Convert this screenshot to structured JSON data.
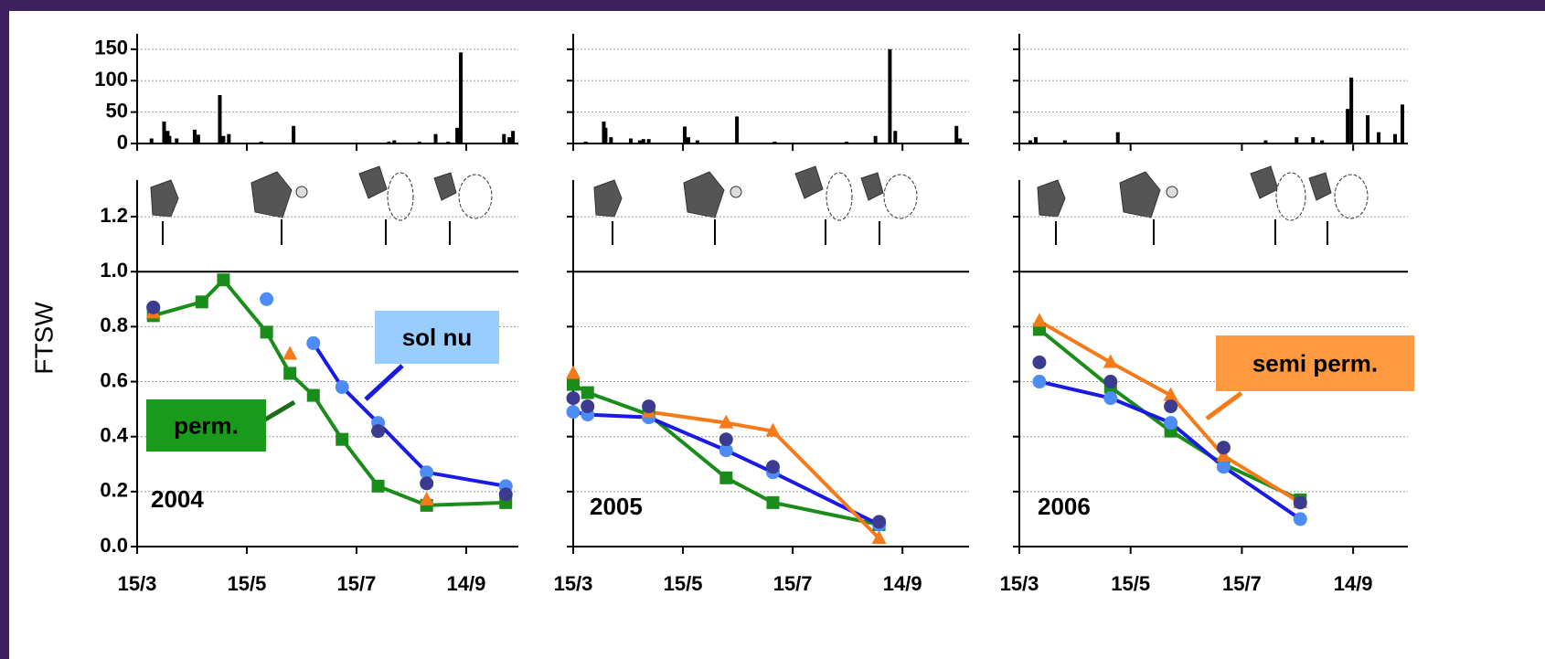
{
  "chart_data": [
    {
      "type": "bar",
      "color": "#000000",
      "grid": true,
      "xlim": [
        74,
        286
      ],
      "ylim": [
        0,
        160
      ],
      "yticks": [
        0,
        50,
        100,
        150
      ],
      "x": [
        82,
        89,
        91,
        92,
        96,
        106,
        108,
        120,
        122,
        125,
        143,
        161,
        214,
        217,
        231,
        240,
        247,
        252,
        254,
        278,
        281,
        283
      ],
      "values": [
        8,
        35,
        20,
        12,
        8,
        22,
        14,
        77,
        12,
        15,
        3,
        28,
        3,
        5,
        3,
        15,
        3,
        25,
        145,
        15,
        10,
        20
      ]
    },
    {
      "type": "line",
      "grid": true,
      "xlim": [
        74,
        286
      ],
      "ylim": [
        0,
        1.3
      ],
      "yticks": [
        {
          "value": 0,
          "label": "0.0"
        },
        0.2,
        0.4,
        0.6,
        0.8,
        {
          "value": 1,
          "label": "1.0"
        },
        1.2
      ],
      "xticks": [
        {
          "value": 74,
          "label": "15/3"
        },
        {
          "value": 135,
          "label": "15/5"
        },
        {
          "value": 196,
          "label": "15/7"
        },
        {
          "value": 257,
          "label": "14/9"
        }
      ],
      "y_label": "FTSW",
      "year": "2004",
      "x": [
        83,
        110,
        122,
        146,
        159,
        172,
        188,
        208,
        235,
        279
      ],
      "series": [
        {
          "name": "perm.",
          "color": "#1a8c1a",
          "marker": "square",
          "marker_color": "#1a8c1a",
          "line": true,
          "label_color": "#1a9a1a",
          "values": [
            0.84,
            0.89,
            0.97,
            0.78,
            0.63,
            0.55,
            0.39,
            0.22,
            0.15,
            0.16
          ]
        },
        {
          "name": "sol nu",
          "color": "#1a1ae6",
          "marker": "circle",
          "marker_color": "#4d8cf5",
          "line": true,
          "label_color": "#99ccff",
          "values": [
            0.87,
            null,
            null,
            0.9,
            null,
            0.74,
            0.58,
            0.45,
            0.27,
            0.22
          ]
        },
        {
          "color": "#f57a1a",
          "marker": "triangle",
          "marker_color": "#f57a1a",
          "line": false,
          "values": [
            0.85,
            null,
            null,
            null,
            0.7,
            null,
            null,
            null,
            0.17,
            null
          ]
        },
        {
          "color": "#3b3b8f",
          "marker": "circle",
          "marker_color": "#3b3b8f",
          "line": false,
          "values": [
            0.87,
            null,
            null,
            null,
            null,
            null,
            null,
            0.42,
            0.23,
            0.19
          ]
        }
      ]
    },
    {
      "type": "bar",
      "color": "#000000",
      "grid": true,
      "xlim": [
        74,
        294
      ],
      "ylim": [
        0,
        160
      ],
      "x": [
        81,
        91,
        92,
        95,
        106,
        111,
        113,
        116,
        136,
        138,
        143,
        165,
        186,
        226,
        242,
        250,
        253,
        287,
        289
      ],
      "values": [
        3,
        35,
        25,
        10,
        8,
        5,
        7,
        7,
        27,
        10,
        5,
        43,
        3,
        3,
        12,
        150,
        20,
        28,
        8
      ]
    },
    {
      "type": "line",
      "grid": true,
      "xlim": [
        74,
        294
      ],
      "ylim": [
        0,
        1.3
      ],
      "xticks": [
        {
          "value": 74,
          "label": "15/3"
        },
        {
          "value": 135,
          "label": "15/5"
        },
        {
          "value": 196,
          "label": "15/7"
        },
        {
          "value": 257,
          "label": "14/9"
        }
      ],
      "year": "2005",
      "x": [
        74,
        82,
        116,
        159,
        185,
        244
      ],
      "series": [
        {
          "color": "#1a8c1a",
          "marker": "square",
          "marker_color": "#1a8c1a",
          "line": true,
          "values": [
            0.59,
            0.56,
            0.48,
            0.25,
            0.16,
            0.08
          ]
        },
        {
          "color": "#1a1ae6",
          "marker": "circle",
          "marker_color": "#4d8cf5",
          "line": true,
          "values": [
            0.49,
            0.48,
            0.47,
            0.35,
            0.27,
            0.08
          ]
        },
        {
          "color": "#f57a1a",
          "marker": "triangle",
          "marker_color": "#f57a1a",
          "line": true,
          "values": [
            0.63,
            null,
            0.49,
            0.45,
            0.42,
            0.03
          ]
        },
        {
          "color": "#3b3b8f",
          "marker": "circle",
          "marker_color": "#3b3b8f",
          "line": false,
          "values": [
            0.54,
            0.51,
            0.51,
            0.39,
            0.29,
            0.09
          ]
        }
      ]
    },
    {
      "type": "bar",
      "color": "#000000",
      "grid": true,
      "xlim": [
        74,
        287
      ],
      "ylim": [
        0,
        160
      ],
      "x": [
        80,
        83,
        99,
        128,
        209,
        226,
        235,
        240,
        254,
        256,
        265,
        271,
        280,
        284
      ],
      "values": [
        5,
        10,
        5,
        18,
        5,
        10,
        10,
        5,
        55,
        105,
        45,
        18,
        15,
        62
      ]
    },
    {
      "type": "line",
      "grid": true,
      "xlim": [
        74,
        287
      ],
      "ylim": [
        0,
        1.3
      ],
      "xticks": [
        {
          "value": 74,
          "label": "15/3"
        },
        {
          "value": 135,
          "label": "15/5"
        },
        {
          "value": 196,
          "label": "15/7"
        },
        {
          "value": 257,
          "label": "14/9"
        }
      ],
      "year": "2006",
      "x": [
        85,
        124,
        157,
        186,
        228
      ],
      "series": [
        {
          "color": "#1a8c1a",
          "marker": "square",
          "marker_color": "#1a8c1a",
          "line": true,
          "values": [
            0.79,
            0.58,
            0.42,
            0.3,
            0.17
          ]
        },
        {
          "color": "#1a1ae6",
          "marker": "circle",
          "marker_color": "#4d8cf5",
          "line": true,
          "values": [
            0.6,
            0.54,
            0.45,
            0.29,
            0.1
          ]
        },
        {
          "name": "semi perm.",
          "color": "#f57a1a",
          "marker": "triangle",
          "marker_color": "#f57a1a",
          "line": true,
          "label_color": "#ff9a40",
          "values": [
            0.82,
            0.67,
            0.55,
            0.33,
            0.16
          ]
        },
        {
          "color": "#3b3b8f",
          "marker": "circle",
          "marker_color": "#3b3b8f",
          "line": false,
          "values": [
            0.67,
            0.6,
            0.51,
            0.36,
            0.16
          ]
        }
      ]
    }
  ]
}
